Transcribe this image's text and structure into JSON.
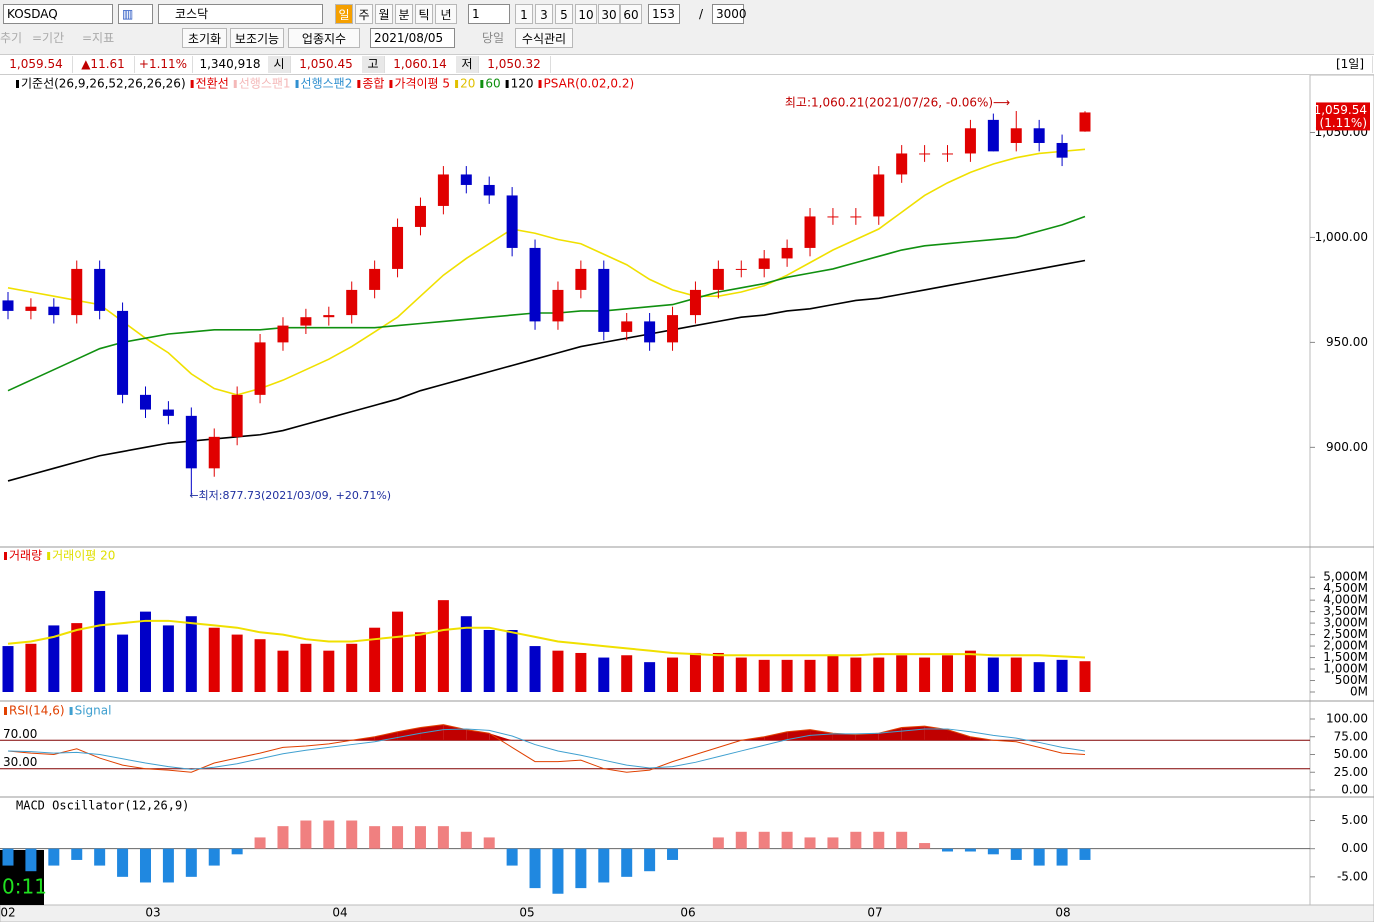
{
  "toolbar": {
    "market": "KOSDAQ",
    "search": "코스닥",
    "periods": [
      "일",
      "주",
      "월",
      "분",
      "틱",
      "년"
    ],
    "unit": "1",
    "intervals": [
      "1",
      "3",
      "5",
      "10",
      "30",
      "60"
    ],
    "count": "153",
    "sep": "/",
    "max": "3000",
    "faded": [
      "추기",
      "=기간",
      "=지표"
    ],
    "buttons": [
      "초기화",
      "보조기능",
      "업종지수"
    ],
    "date": "2021/08/05",
    "today": "당일",
    "formula": "수식관리"
  },
  "info": {
    "price": "1,059.54",
    "change": "▲11.61",
    "rate": "+1.11%",
    "volume": "1,340,918",
    "open_label": "시",
    "open": "1,050.45",
    "high_label": "고",
    "high": "1,060.14",
    "low_label": "저",
    "low": "1,050.32",
    "span": "[1일]"
  },
  "x_labels": [
    "02",
    "03",
    "04",
    "05",
    "06",
    "07",
    "08"
  ],
  "clock": "0:11",
  "chart_data": [
    {
      "type": "candlestick",
      "indicators": [
        {
          "label": "기준선(26,9,26,52,26,26,26)",
          "color": "#000000"
        },
        {
          "label": "전환선",
          "color": "#e00000"
        },
        {
          "label": "선행스팬1",
          "color": "#f4b8b8"
        },
        {
          "label": "선행스팬2",
          "color": "#3090d0"
        },
        {
          "label": "종합",
          "color": "#e00000"
        },
        {
          "label": "가격이평 5",
          "color": "#e00000"
        },
        {
          "label": "PSAR(0.02,0.2)",
          "color": "#e00000"
        }
      ],
      "open": [
        970,
        965,
        967,
        963,
        985,
        965,
        925,
        918,
        915,
        890,
        905,
        925,
        950,
        958,
        962,
        963,
        975,
        985,
        1005,
        1015,
        1030,
        1025,
        1020,
        995,
        960,
        975,
        985,
        955,
        960,
        950,
        963,
        975,
        985,
        985,
        990,
        995,
        1010,
        1010,
        1010,
        1030,
        1040,
        1040,
        1040,
        1056,
        1045,
        1052,
        1045,
        1050.45
      ],
      "high": [
        974,
        971,
        971,
        989,
        989,
        969,
        929,
        922,
        919,
        909,
        929,
        954,
        962,
        966,
        967,
        979,
        989,
        1009,
        1019,
        1034,
        1034,
        1029,
        1024,
        999,
        979,
        989,
        989,
        964,
        964,
        967,
        979,
        989,
        989,
        994,
        999,
        1014,
        1014,
        1014,
        1034,
        1044,
        1044,
        1044,
        1056,
        1059,
        1060.21,
        1056,
        1049,
        1060.14
      ],
      "low": [
        961,
        961,
        959,
        959,
        961,
        921,
        914,
        911,
        877.73,
        886,
        901,
        921,
        946,
        954,
        958,
        959,
        971,
        981,
        1001,
        1011,
        1021,
        1016,
        991,
        956,
        956,
        971,
        951,
        951,
        946,
        946,
        959,
        971,
        981,
        981,
        986,
        991,
        1006,
        1006,
        1006,
        1026,
        1036,
        1036,
        1036,
        1041,
        1041,
        1041,
        1034,
        1050.32
      ],
      "close": [
        965,
        967,
        963,
        985,
        965,
        925,
        918,
        915,
        890,
        905,
        925,
        950,
        958,
        962,
        963,
        975,
        985,
        1005,
        1015,
        1030,
        1025,
        1020,
        995,
        960,
        975,
        985,
        955,
        960,
        950,
        963,
        975,
        985,
        985,
        990,
        995,
        1010,
        1010,
        1010,
        1030,
        1040,
        1040,
        1040,
        1052,
        1041,
        1052,
        1045,
        1038,
        1059.54
      ],
      "series": [
        {
          "name": "20",
          "color": "#f0e000",
          "values": [
            976,
            974,
            972,
            970,
            968,
            960,
            952,
            945,
            935,
            928,
            925,
            928,
            932,
            937,
            942,
            948,
            955,
            962,
            972,
            982,
            990,
            997,
            1004,
            1002,
            999,
            997,
            992,
            987,
            980,
            975,
            972,
            972,
            974,
            977,
            982,
            988,
            994,
            999,
            1004,
            1012,
            1020,
            1026,
            1031,
            1035,
            1038,
            1040,
            1041,
            1042
          ]
        },
        {
          "name": "60",
          "color": "#109010",
          "values": [
            927,
            932,
            937,
            942,
            947,
            950,
            952,
            954,
            955,
            956,
            956,
            956,
            957,
            957,
            957,
            957,
            957,
            958,
            959,
            960,
            961,
            962,
            963,
            964,
            964,
            965,
            965,
            966,
            967,
            968,
            971,
            974,
            976,
            978,
            981,
            983,
            985,
            988,
            991,
            994,
            996,
            997,
            998,
            999,
            1000,
            1003,
            1006,
            1010
          ]
        },
        {
          "name": "120",
          "color": "#000000",
          "values": [
            884,
            887,
            890,
            893,
            896,
            898,
            900,
            902,
            903,
            904,
            905,
            906,
            908,
            911,
            914,
            917,
            920,
            923,
            927,
            930,
            933,
            936,
            939,
            942,
            945,
            948,
            950,
            952,
            954,
            956,
            958,
            960,
            962,
            963,
            965,
            966,
            968,
            970,
            971,
            973,
            975,
            977,
            979,
            981,
            983,
            985,
            987,
            989
          ]
        }
      ],
      "up_color": "#e00000",
      "down_color": "#0000c8",
      "ylim": [
        853,
        1075
      ],
      "yticks": [
        {
          "value": 900,
          "label": "900.00"
        },
        {
          "value": 950,
          "label": "950.00"
        },
        {
          "value": 1000,
          "label": "1,000.00"
        },
        {
          "value": 1050,
          "label": "1,050.00"
        }
      ],
      "last_label": "1,059.54",
      "last_rate": "(1.11%)",
      "annotations": [
        "최고:1,060.21(2021/07/26, -0.06%)⟶",
        "←최저:877.73(2021/03/09, +20.71%)"
      ]
    },
    {
      "type": "volume",
      "legend": [
        "거래량"
      ],
      "values": [
        2000,
        2100,
        2900,
        3000,
        4400,
        2500,
        3500,
        2900,
        3300,
        2800,
        2500,
        2300,
        1800,
        2100,
        1800,
        2100,
        2800,
        3500,
        2600,
        4000,
        3300,
        2700,
        2700,
        2000,
        1800,
        1700,
        1500,
        1600,
        1300,
        1500,
        1700,
        1700,
        1500,
        1400,
        1400,
        1400,
        1600,
        1500,
        1500,
        1600,
        1500,
        1600,
        1800,
        1500,
        1500,
        1300,
        1400,
        1340
      ],
      "series": [
        {
          "name": "거래이평 20",
          "color": "#f0e000",
          "values": [
            2100,
            2200,
            2400,
            2700,
            2900,
            3000,
            3100,
            3100,
            3000,
            2900,
            2800,
            2600,
            2500,
            2300,
            2200,
            2200,
            2300,
            2400,
            2500,
            2700,
            2800,
            2800,
            2600,
            2400,
            2200,
            2100,
            2000,
            1900,
            1800,
            1700,
            1650,
            1600,
            1600,
            1600,
            1600,
            1600,
            1600,
            1600,
            1650,
            1650,
            1650,
            1650,
            1650,
            1600,
            1600,
            1600,
            1550,
            1500
          ]
        }
      ],
      "ylim": [
        0,
        5400
      ],
      "yticks": [
        {
          "value": 0,
          "label": "0M"
        },
        {
          "value": 500,
          "label": "500M"
        },
        {
          "value": 1000,
          "label": "1,000M"
        },
        {
          "value": 1500,
          "label": "1,500M"
        },
        {
          "value": 2000,
          "label": "2,000M"
        },
        {
          "value": 2500,
          "label": "2,500M"
        },
        {
          "value": 3000,
          "label": "3,000M"
        },
        {
          "value": 3500,
          "label": "3,500M"
        },
        {
          "value": 4000,
          "label": "4,000M"
        },
        {
          "value": 4500,
          "label": "4,500M"
        },
        {
          "value": 5000,
          "label": "5,000M"
        }
      ]
    },
    {
      "type": "line",
      "series": [
        {
          "name": "RSI(14,6)",
          "color": "#e04000",
          "values": [
            55,
            52,
            50,
            58,
            45,
            35,
            30,
            28,
            25,
            38,
            45,
            52,
            60,
            62,
            65,
            70,
            75,
            82,
            88,
            92,
            85,
            80,
            60,
            40,
            40,
            42,
            30,
            25,
            28,
            40,
            50,
            60,
            70,
            75,
            82,
            85,
            80,
            78,
            80,
            88,
            90,
            85,
            75,
            70,
            68,
            60,
            52,
            50
          ]
        },
        {
          "name": "Signal",
          "color": "#40a0d0",
          "values": [
            55,
            54,
            52,
            53,
            50,
            44,
            38,
            33,
            29,
            32,
            37,
            44,
            51,
            56,
            60,
            64,
            68,
            74,
            80,
            85,
            86,
            84,
            76,
            64,
            55,
            49,
            42,
            35,
            31,
            33,
            39,
            47,
            55,
            63,
            71,
            77,
            79,
            79,
            80,
            83,
            86,
            86,
            82,
            77,
            73,
            67,
            60,
            55
          ]
        }
      ],
      "ylim": [
        0,
        100
      ],
      "yticks": [
        {
          "value": 0,
          "label": "0.00"
        },
        {
          "value": 25,
          "label": "25.00"
        },
        {
          "value": 50,
          "label": "50.00"
        },
        {
          "value": 75,
          "label": "75.00"
        },
        {
          "value": 100,
          "label": "100.00"
        }
      ],
      "levels": [
        {
          "value": 70,
          "label": "70.00"
        },
        {
          "value": 30,
          "label": "30.00"
        }
      ],
      "fill_color": "#c00000"
    },
    {
      "type": "oscillator",
      "title": "MACD Oscillator(12,26,9)",
      "pos_color": "#f08080",
      "neg_color": "#2088e0",
      "values": [
        -3,
        -4,
        -3,
        -2,
        -3,
        -5,
        -6,
        -6,
        -5,
        -3,
        -1,
        2,
        4,
        5,
        5,
        5,
        4,
        4,
        4,
        4,
        3,
        2,
        -3,
        -7,
        -8,
        -7,
        -6,
        -5,
        -4,
        -2,
        0,
        2,
        3,
        3,
        3,
        2,
        2,
        3,
        3,
        3,
        1,
        -0.5,
        -0.5,
        -1,
        -2,
        -3,
        -3,
        -2
      ],
      "ylim": [
        -10,
        9
      ],
      "yticks": [
        {
          "value": -5,
          "label": "-5.00"
        },
        {
          "value": 0,
          "label": "0.00"
        },
        {
          "value": 5,
          "label": "5.00"
        }
      ]
    }
  ]
}
